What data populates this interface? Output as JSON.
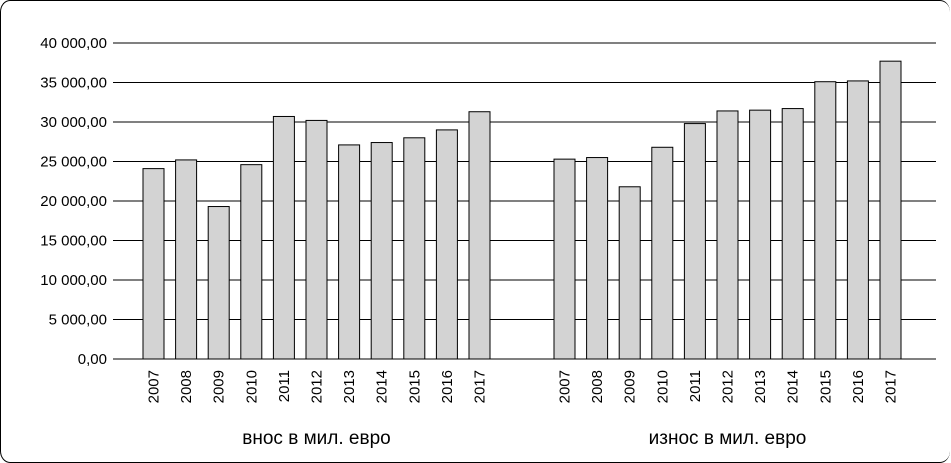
{
  "chart_data": {
    "type": "bar",
    "grid": true,
    "ylim": [
      0,
      40000
    ],
    "yticks": [
      "0,00",
      "5 000,00",
      "10 000,00",
      "15 000,00",
      "20 000,00",
      "25 000,00",
      "30 000,00",
      "35 000,00",
      "40 000,00"
    ],
    "groups": [
      {
        "label": "внос в мил. евро",
        "categories": [
          "2007",
          "2008",
          "2009",
          "2010",
          "2011",
          "2012",
          "2013",
          "2014",
          "2015",
          "2016",
          "2017"
        ],
        "values": [
          24100,
          25200,
          19300,
          24600,
          30700,
          30200,
          27100,
          27400,
          28000,
          29000,
          31300
        ]
      },
      {
        "label": "износ в мил. евро",
        "categories": [
          "2007",
          "2008",
          "2009",
          "2010",
          "2011",
          "2012",
          "2013",
          "2014",
          "2015",
          "2016",
          "2017"
        ],
        "values": [
          25300,
          25500,
          21800,
          26800,
          29800,
          31400,
          31500,
          31700,
          35100,
          35200,
          37700
        ]
      }
    ],
    "bar_color": "#d3d3d3"
  }
}
